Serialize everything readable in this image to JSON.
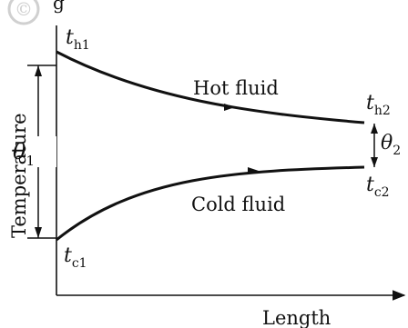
{
  "diagram": {
    "header_fragment": "g",
    "watermark": "©",
    "x_axis_label": "Length",
    "y_axis_label": "Temperature",
    "hot_curve_label": "Hot fluid",
    "cold_curve_label": "Cold fluid",
    "th1": {
      "base": "t",
      "sub": "h1"
    },
    "th2": {
      "base": "t",
      "sub": "h2"
    },
    "tc1": {
      "base": "t",
      "sub": "c1"
    },
    "tc2": {
      "base": "t",
      "sub": "c2"
    },
    "theta1": {
      "base": "θ",
      "sub": "1"
    },
    "theta2": {
      "base": "θ",
      "sub": "2"
    },
    "colors": {
      "line": "#111111",
      "watermark": "#cfcfcf",
      "background": "#ffffff"
    }
  }
}
